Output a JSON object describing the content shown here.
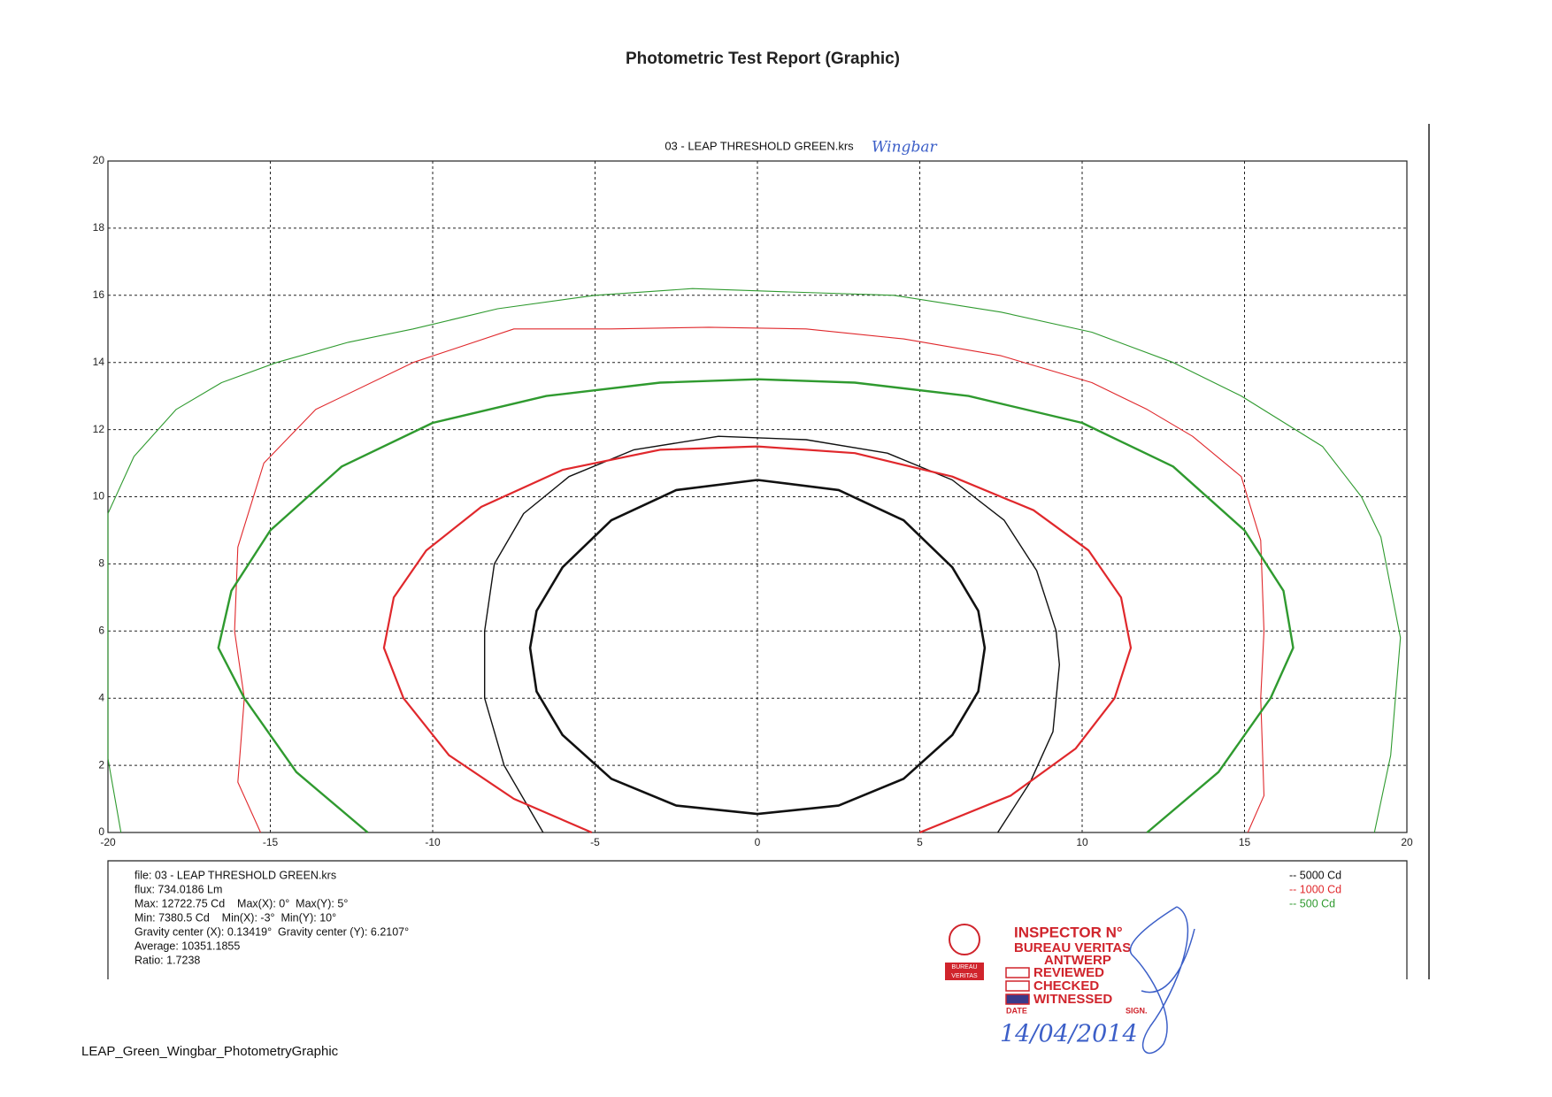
{
  "page_title": "Photometric Test Report (Graphic)",
  "footer": "LEAP_Green_Wingbar_PhotometryGraphic",
  "chart_data": {
    "type": "contour",
    "title": "03 - LEAP THRESHOLD GREEN.krs",
    "annotation": "Wingbar",
    "xlim": [
      -20,
      20
    ],
    "ylim": [
      0,
      20
    ],
    "xticks": [
      -20,
      -15,
      -10,
      -5,
      0,
      5,
      10,
      15,
      20
    ],
    "yticks": [
      0,
      2,
      4,
      6,
      8,
      10,
      12,
      14,
      16,
      18,
      20
    ],
    "grid": true,
    "legend": "upper right",
    "series": [
      {
        "name": "-- 5000 Cd",
        "color": "#111111",
        "curves": [
          {
            "width": 2.6,
            "x": [
              0,
              2.5,
              4.5,
              6,
              6.8,
              7,
              6.8,
              6,
              4.5,
              2.5,
              0,
              -2.5,
              -4.5,
              -6,
              -6.8,
              -7,
              -6.8,
              -6,
              -4.5,
              -2.5,
              0
            ],
            "y": [
              10.5,
              10.2,
              9.3,
              7.9,
              6.6,
              5.5,
              4.2,
              2.9,
              1.6,
              0.8,
              0.55,
              0.8,
              1.6,
              2.9,
              4.2,
              5.5,
              6.6,
              7.9,
              9.3,
              10.2,
              10.5
            ]
          },
          {
            "width": 1.4,
            "x": [
              -6.6,
              -7.8,
              -8.4,
              -8.4,
              -8.1,
              -7.2,
              -5.8,
              -3.8,
              -1.2,
              1.5,
              4,
              6,
              7.6,
              8.6,
              9.2,
              9.3,
              9.1,
              8.4,
              7.4
            ],
            "y": [
              0,
              2,
              4,
              6,
              8,
              9.5,
              10.6,
              11.4,
              11.8,
              11.7,
              11.3,
              10.5,
              9.3,
              7.8,
              6,
              5,
              3,
              1.5,
              0
            ]
          }
        ]
      },
      {
        "name": "-- 1000 Cd",
        "color": "#e0282c",
        "curves": [
          {
            "width": 2.2,
            "x": [
              -5.1,
              -7.5,
              -9.5,
              -10.9,
              -11.5,
              -11.2,
              -10.2,
              -8.5,
              -6,
              -3,
              0,
              3,
              6,
              8.5,
              10.2,
              11.2,
              11.5,
              11,
              9.8,
              7.8,
              5
            ],
            "y": [
              0,
              1,
              2.3,
              4,
              5.5,
              7,
              8.4,
              9.7,
              10.8,
              11.4,
              11.5,
              11.3,
              10.6,
              9.6,
              8.4,
              7,
              5.5,
              4,
              2.5,
              1.1,
              0
            ]
          },
          {
            "width": 1.1,
            "x": [
              -15.3,
              -16,
              -15.8,
              -16.1,
              -16,
              -15.2,
              -13.6,
              -10.6,
              -7.5,
              -4.5,
              -1.5,
              1.5,
              4.5,
              7.5,
              10.3,
              12,
              13.4,
              14.9,
              15.5,
              15.6,
              15.5,
              15.6,
              15.1
            ],
            "y": [
              0,
              1.5,
              4,
              6,
              8.5,
              11,
              12.6,
              14,
              15,
              15,
              15.05,
              15,
              14.7,
              14.2,
              13.4,
              12.6,
              11.8,
              10.6,
              8.7,
              6,
              4,
              1.1,
              0
            ]
          }
        ]
      },
      {
        "name": "-- 500 Cd",
        "color": "#2f9a2f",
        "curves": [
          {
            "width": 2.4,
            "x": [
              -12,
              -14.2,
              -15.8,
              -16.6,
              -16.2,
              -15,
              -12.8,
              -10,
              -6.5,
              -3,
              0,
              3,
              6.5,
              10,
              12.8,
              15,
              16.2,
              16.5,
              15.8,
              14.2,
              12
            ],
            "y": [
              0,
              1.8,
              4,
              5.5,
              7.2,
              9,
              10.9,
              12.2,
              13,
              13.4,
              13.5,
              13.4,
              13,
              12.2,
              10.9,
              9,
              7.2,
              5.5,
              4,
              1.8,
              0
            ]
          },
          {
            "width": 1.1,
            "x": [
              -19.6,
              -20,
              -20,
              -20,
              -19.2,
              -17.9,
              -16.5,
              -14.8,
              -12.6,
              -10.6,
              -8,
              -5,
              -2,
              1,
              4.2,
              7.5,
              10.3,
              12.8,
              14.9,
              17.4,
              18.6,
              19.2,
              19.8,
              19.5,
              19
            ],
            "y": [
              0,
              2.2,
              6,
              9.5,
              11.2,
              12.6,
              13.4,
              14,
              14.6,
              15,
              15.6,
              16,
              16.2,
              16.1,
              16,
              15.5,
              14.9,
              14,
              13,
              11.5,
              10,
              8.8,
              5.8,
              2.3,
              0
            ]
          }
        ]
      }
    ]
  },
  "info": [
    "file: 03 - LEAP THRESHOLD GREEN.krs",
    "flux: 734.0186 Lm",
    "Max: 12722.75 Cd    Max(X): 0°  Max(Y): 5°",
    "Min: 7380.5 Cd    Min(X): -3°  Min(Y): 10°",
    "Gravity center (X): 0.13419°  Gravity center (Y): 6.2107°",
    "Average: 10351.1855",
    "Ratio: 1.7238"
  ],
  "stamp": {
    "logo": [
      "BUREAU",
      "VERITAS"
    ],
    "inspector": "INSPECTOR N°",
    "company": "BUREAU VERITAS",
    "city": "ANTWERP",
    "boxes": [
      "REVIEWED",
      "CHECKED",
      "WITNESSED"
    ],
    "date_label": "DATE",
    "sign_label": "SIGN.",
    "date": "14/04/2014"
  }
}
